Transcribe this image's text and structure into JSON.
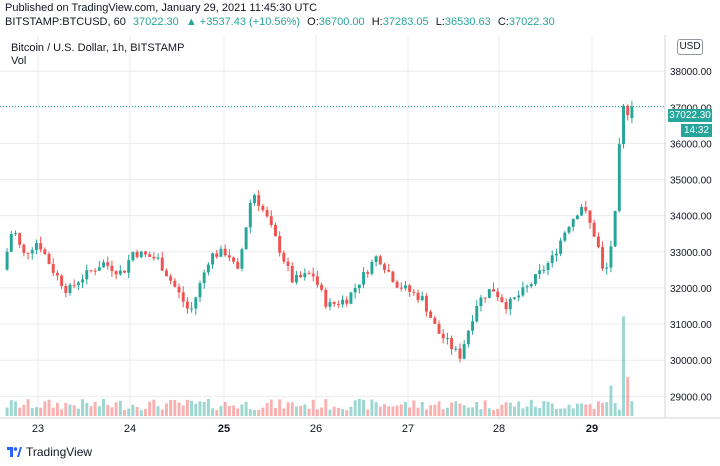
{
  "header": {
    "published": "Published on TradingView.com, January 29, 2021 11:45:30 UTC",
    "symbol": "BITSTAMP:BTCUSD, 60",
    "last": "37022.30",
    "change": "▲ +3537.43 (+10.56%)",
    "o_label": "O:",
    "o_value": "36700.00",
    "h_label": "H:",
    "h_value": "37283.05",
    "l_label": "L:",
    "l_value": "36530.63",
    "c_label": "C:",
    "c_value": "37022.30"
  },
  "legend": {
    "title": "Bitcoin / U.S. Dollar, 1h, BITSTAMP",
    "volume": "Vol"
  },
  "currency_button": "USD",
  "price_tag": "37022.30",
  "countdown_tag": "14:32",
  "footer": {
    "brand": "TradingView",
    "logo_icon": "tradingview-logo-icon"
  },
  "colors": {
    "up": "#26a69a",
    "down": "#ef5350",
    "grid": "#e9ebef",
    "last_line": "#26a69a"
  },
  "chart_data": {
    "type": "candlestick",
    "interval": "1h",
    "x_tick_labels": [
      "23",
      "24",
      "25",
      "26",
      "27",
      "28",
      "29"
    ],
    "y_tick_labels": [
      "29000.00",
      "30000.00",
      "31000.00",
      "32000.00",
      "33000.00",
      "34000.00",
      "35000.00",
      "36000.00",
      "37000.00",
      "38000.00"
    ],
    "ylim": [
      28400,
      39000
    ],
    "grid": true,
    "last_price": 37022.3,
    "path_anchors": [
      [
        0,
        32500
      ],
      [
        8,
        33700
      ],
      [
        16,
        32900
      ],
      [
        28,
        33300
      ],
      [
        40,
        32500
      ],
      [
        52,
        31900
      ],
      [
        60,
        32200
      ],
      [
        80,
        32700
      ],
      [
        96,
        32400
      ],
      [
        104,
        33000
      ],
      [
        124,
        32800
      ],
      [
        140,
        31900
      ],
      [
        150,
        31300
      ],
      [
        166,
        32900
      ],
      [
        180,
        33000
      ],
      [
        188,
        32400
      ],
      [
        200,
        34700
      ],
      [
        212,
        33900
      ],
      [
        232,
        32200
      ],
      [
        248,
        32400
      ],
      [
        260,
        31500
      ],
      [
        276,
        31700
      ],
      [
        300,
        32900
      ],
      [
        316,
        32100
      ],
      [
        336,
        31700
      ],
      [
        348,
        30800
      ],
      [
        356,
        30500
      ],
      [
        366,
        30100
      ],
      [
        380,
        31600
      ],
      [
        392,
        32000
      ],
      [
        404,
        31500
      ],
      [
        420,
        32000
      ],
      [
        440,
        32800
      ],
      [
        452,
        33700
      ],
      [
        464,
        34300
      ],
      [
        476,
        33300
      ],
      [
        482,
        32200
      ],
      [
        490,
        33700
      ],
      [
        496,
        37000
      ],
      [
        504,
        36800
      ]
    ],
    "volume_spikes": [
      [
        484,
        3.2
      ],
      [
        494,
        10.5
      ],
      [
        498,
        4.1
      ]
    ]
  }
}
